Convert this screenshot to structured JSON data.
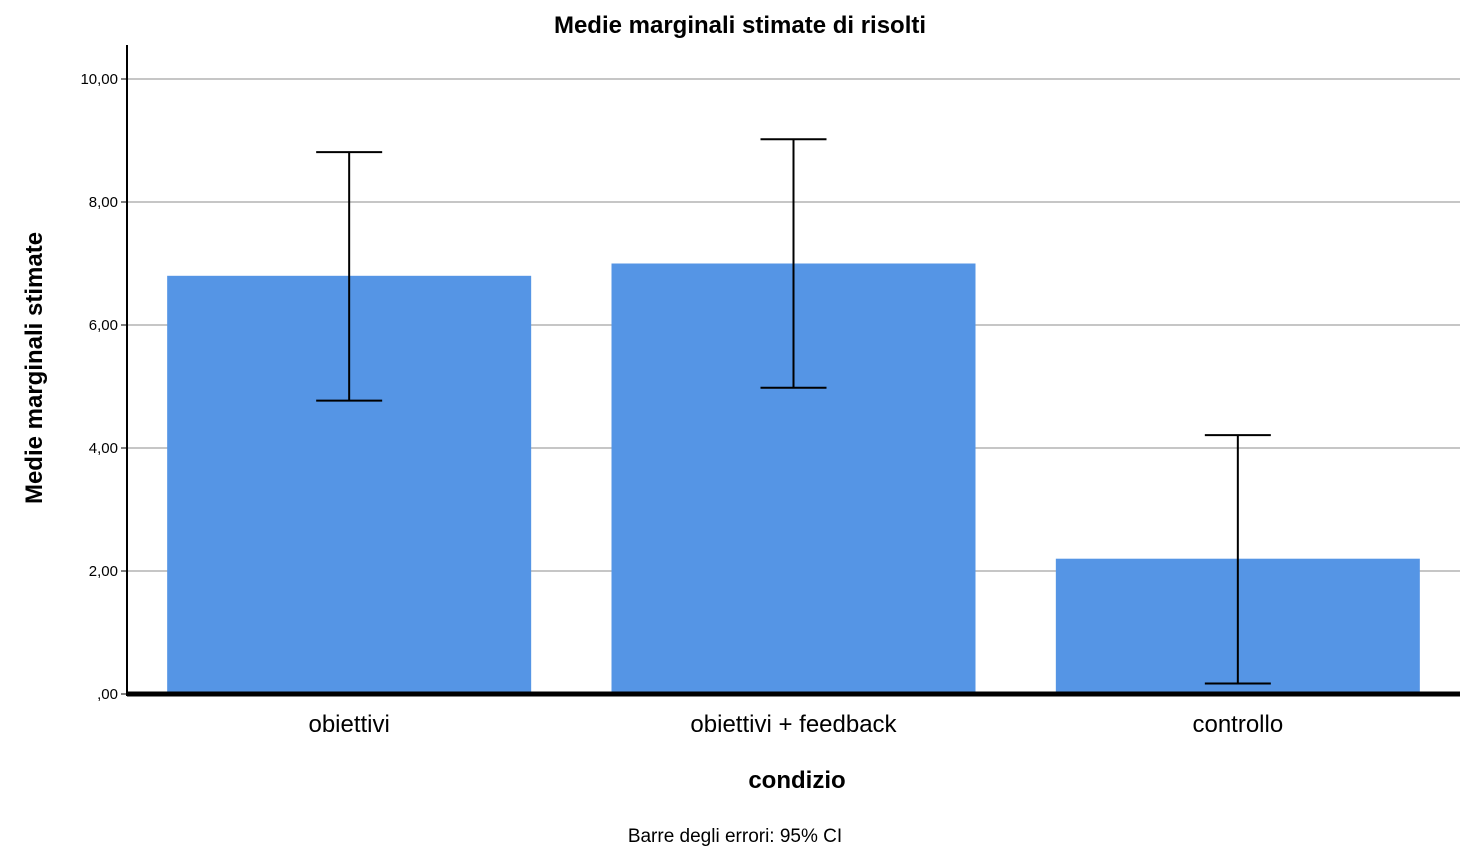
{
  "chart_data": {
    "type": "bar",
    "title": "Medie marginali stimate di risolti",
    "xlabel": "condizio",
    "ylabel": "Medie marginali stimate",
    "footnote": "Barre degli errori: 95% CI",
    "categories": [
      "obiettivi",
      "obiettivi + feedback",
      "controllo"
    ],
    "values": [
      6.8,
      7.0,
      2.2
    ],
    "error_low": [
      4.77,
      4.98,
      0.17
    ],
    "error_high": [
      8.81,
      9.02,
      4.21
    ],
    "yticks": [
      0,
      2,
      4,
      6,
      8,
      10
    ],
    "ytick_labels": [
      ",00",
      "2,00",
      "4,00",
      "6,00",
      "8,00",
      "10,00"
    ],
    "ylim": [
      0,
      10.5
    ],
    "grid": true,
    "bar_color": "#5595e5",
    "grid_color": "#b4b4b4",
    "error_bar_color": "#000000"
  }
}
